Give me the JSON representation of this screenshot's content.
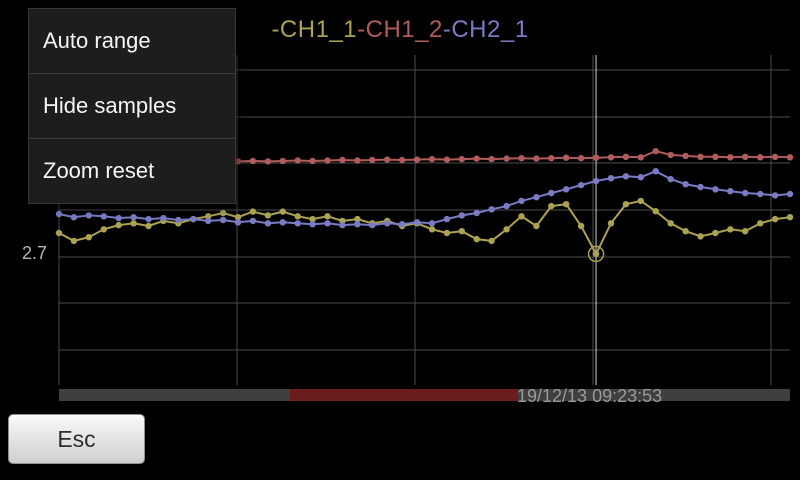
{
  "menu": {
    "items": [
      {
        "label": "Auto range"
      },
      {
        "label": "Hide samples"
      },
      {
        "label": "Zoom reset"
      }
    ]
  },
  "esc_button": {
    "label": "Esc"
  },
  "status_bar": {
    "timestamp": "19/12/13 09:23:53"
  },
  "y_axis": {
    "tick_label": "2.7"
  },
  "chart_data": {
    "type": "line",
    "title": "",
    "xlabel": "",
    "ylabel": "",
    "y_tick_labels": [
      "2.7"
    ],
    "ylim": [
      2.427,
      3.137
    ],
    "x_points": 50,
    "grid": true,
    "legend_position": "top-center",
    "selected": {
      "series": "CH1_1",
      "index": 36
    },
    "colors": {
      "grid": "#4d4d4d",
      "cursor": "#d0d0d0"
    },
    "series": [
      {
        "name": "CH1_1",
        "legend_label": "-CH1_1",
        "color": "#aba352",
        "values": [
          2.754,
          2.737,
          2.745,
          2.762,
          2.771,
          2.775,
          2.769,
          2.78,
          2.775,
          2.784,
          2.79,
          2.797,
          2.788,
          2.8,
          2.792,
          2.8,
          2.79,
          2.784,
          2.79,
          2.78,
          2.784,
          2.775,
          2.78,
          2.769,
          2.775,
          2.762,
          2.754,
          2.758,
          2.741,
          2.737,
          2.762,
          2.79,
          2.769,
          2.812,
          2.816,
          2.769,
          2.709,
          2.775,
          2.816,
          2.823,
          2.801,
          2.775,
          2.758,
          2.747,
          2.754,
          2.762,
          2.758,
          2.775,
          2.784,
          2.788
        ]
      },
      {
        "name": "CH1_2",
        "legend_label": "-CH1_2",
        "color": "#b05c5c",
        "values": [
          2.904,
          2.906,
          2.904,
          2.905,
          2.906,
          2.905,
          2.906,
          2.907,
          2.906,
          2.907,
          2.908,
          2.907,
          2.908,
          2.909,
          2.908,
          2.909,
          2.91,
          2.909,
          2.91,
          2.911,
          2.91,
          2.911,
          2.912,
          2.911,
          2.912,
          2.913,
          2.912,
          2.913,
          2.914,
          2.913,
          2.914,
          2.915,
          2.914,
          2.915,
          2.916,
          2.915,
          2.916,
          2.917,
          2.918,
          2.917,
          2.93,
          2.922,
          2.92,
          2.918,
          2.918,
          2.917,
          2.918,
          2.917,
          2.918,
          2.917
        ]
      },
      {
        "name": "CH2_1",
        "legend_label": "-CH2_1",
        "color": "#7b7bc4",
        "values": [
          2.795,
          2.788,
          2.792,
          2.79,
          2.786,
          2.788,
          2.784,
          2.786,
          2.782,
          2.784,
          2.78,
          2.782,
          2.777,
          2.78,
          2.775,
          2.777,
          2.775,
          2.773,
          2.775,
          2.771,
          2.773,
          2.771,
          2.775,
          2.773,
          2.777,
          2.775,
          2.784,
          2.792,
          2.797,
          2.805,
          2.812,
          2.823,
          2.831,
          2.84,
          2.848,
          2.857,
          2.866,
          2.872,
          2.876,
          2.874,
          2.887,
          2.87,
          2.859,
          2.853,
          2.848,
          2.844,
          2.84,
          2.838,
          2.835,
          2.838
        ]
      }
    ]
  }
}
